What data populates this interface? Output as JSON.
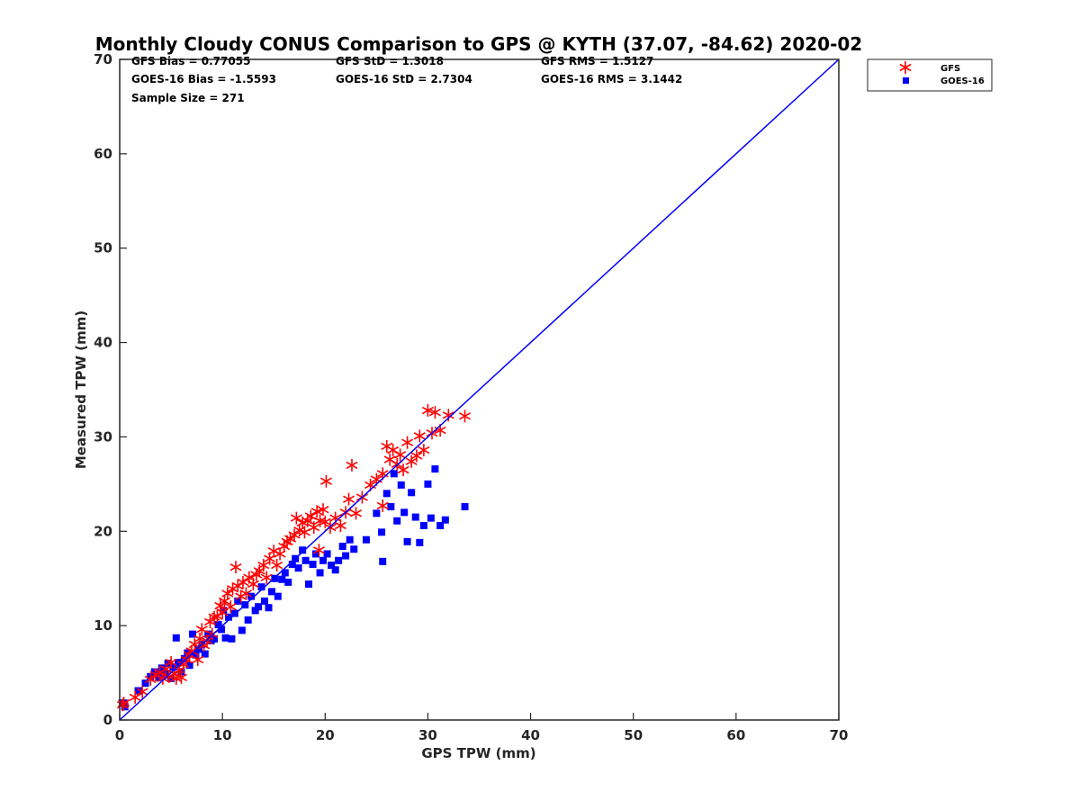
{
  "chart_data": {
    "type": "scatter",
    "title": "Monthly Cloudy CONUS Comparison to GPS @ KYTH (37.07, -84.62) 2020-02",
    "xlabel": "GPS TPW (mm)",
    "ylabel": "Measured TPW (mm)",
    "xlim": [
      0,
      70
    ],
    "ylim": [
      0,
      70
    ],
    "xticks": [
      0,
      10,
      20,
      30,
      40,
      50,
      60,
      70
    ],
    "yticks": [
      0,
      10,
      20,
      30,
      40,
      50,
      60,
      70
    ],
    "grid": false,
    "legend_position": "top-right",
    "stats": [
      [
        "GFS Bias = 0.77055",
        "GFS StD = 1.3018",
        "GFS RMS = 1.5127"
      ],
      [
        "GOES-16 Bias = -1.5593",
        "GOES-16 StD = 2.7304",
        "GOES-16 RMS = 3.1442"
      ],
      [
        "Sample Size = 271",
        "",
        ""
      ]
    ],
    "reference_line": {
      "x": [
        0,
        70
      ],
      "y": [
        0,
        70
      ],
      "color": "#0000ff"
    },
    "series": [
      {
        "name": "GFS",
        "marker": "asterisk",
        "color": "#ff0000",
        "points": [
          [
            0.3,
            1.6
          ],
          [
            0.4,
            1.8
          ],
          [
            1.5,
            2.4
          ],
          [
            2.2,
            3.0
          ],
          [
            3.0,
            4.3
          ],
          [
            3.5,
            4.8
          ],
          [
            3.9,
            5.0
          ],
          [
            4.2,
            4.4
          ],
          [
            4.5,
            5.4
          ],
          [
            4.8,
            4.6
          ],
          [
            5.0,
            6.1
          ],
          [
            5.3,
            4.9
          ],
          [
            5.5,
            4.4
          ],
          [
            5.8,
            5.3
          ],
          [
            6.0,
            4.5
          ],
          [
            6.2,
            5.9
          ],
          [
            6.5,
            6.4
          ],
          [
            6.8,
            6.9
          ],
          [
            7.0,
            7.3
          ],
          [
            7.3,
            8.0
          ],
          [
            7.6,
            6.4
          ],
          [
            7.8,
            8.6
          ],
          [
            8.0,
            9.6
          ],
          [
            8.2,
            7.9
          ],
          [
            8.5,
            8.4
          ],
          [
            8.8,
            10.4
          ],
          [
            9.0,
            9.1
          ],
          [
            9.2,
            10.9
          ],
          [
            9.5,
            11.0
          ],
          [
            9.8,
            12.1
          ],
          [
            10.0,
            11.4
          ],
          [
            10.2,
            12.6
          ],
          [
            10.5,
            13.4
          ],
          [
            10.8,
            12.0
          ],
          [
            11.0,
            13.9
          ],
          [
            11.3,
            16.2
          ],
          [
            11.5,
            14.2
          ],
          [
            11.8,
            13.1
          ],
          [
            12.0,
            14.6
          ],
          [
            12.3,
            13.4
          ],
          [
            12.6,
            15.1
          ],
          [
            13.0,
            14.4
          ],
          [
            13.3,
            15.4
          ],
          [
            13.6,
            15.8
          ],
          [
            14.0,
            16.4
          ],
          [
            14.3,
            15.1
          ],
          [
            14.6,
            17.1
          ],
          [
            15.0,
            17.9
          ],
          [
            15.3,
            16.4
          ],
          [
            15.6,
            17.6
          ],
          [
            16.0,
            18.4
          ],
          [
            16.3,
            18.9
          ],
          [
            16.6,
            19.2
          ],
          [
            17.0,
            19.6
          ],
          [
            17.2,
            21.4
          ],
          [
            17.5,
            20.1
          ],
          [
            17.8,
            20.9
          ],
          [
            18.0,
            19.9
          ],
          [
            18.3,
            21.1
          ],
          [
            18.6,
            21.6
          ],
          [
            18.9,
            20.4
          ],
          [
            19.2,
            22.1
          ],
          [
            19.5,
            21.1
          ],
          [
            19.8,
            22.3
          ],
          [
            20.0,
            21.0
          ],
          [
            20.1,
            25.3
          ],
          [
            20.5,
            20.4
          ],
          [
            21.0,
            21.4
          ],
          [
            21.5,
            20.6
          ],
          [
            22.0,
            22.0
          ],
          [
            22.3,
            23.4
          ],
          [
            22.6,
            27.0
          ],
          [
            23.0,
            21.9
          ],
          [
            23.6,
            23.6
          ],
          [
            24.4,
            24.9
          ],
          [
            25.0,
            25.5
          ],
          [
            25.6,
            26.1
          ],
          [
            26.0,
            29.0
          ],
          [
            26.3,
            27.6
          ],
          [
            26.6,
            28.6
          ],
          [
            27.0,
            27.1
          ],
          [
            27.3,
            28.1
          ],
          [
            27.6,
            26.5
          ],
          [
            28.0,
            29.4
          ],
          [
            28.4,
            27.4
          ],
          [
            28.9,
            28.0
          ],
          [
            29.2,
            30.1
          ],
          [
            29.6,
            28.6
          ],
          [
            30.0,
            32.8
          ],
          [
            30.4,
            30.4
          ],
          [
            30.7,
            32.6
          ],
          [
            31.2,
            30.7
          ],
          [
            32.0,
            32.3
          ],
          [
            33.6,
            32.2
          ],
          [
            19.4,
            18.0
          ],
          [
            25.6,
            22.7
          ]
        ]
      },
      {
        "name": "GOES-16",
        "marker": "square",
        "color": "#0000ff",
        "points": [
          [
            0.4,
            1.8
          ],
          [
            0.5,
            1.4
          ],
          [
            1.8,
            3.1
          ],
          [
            2.5,
            3.9
          ],
          [
            3.0,
            4.6
          ],
          [
            3.4,
            5.1
          ],
          [
            3.8,
            4.5
          ],
          [
            4.1,
            5.5
          ],
          [
            4.4,
            4.9
          ],
          [
            4.7,
            6.0
          ],
          [
            5.0,
            4.4
          ],
          [
            5.2,
            5.6
          ],
          [
            5.5,
            8.7
          ],
          [
            5.7,
            6.1
          ],
          [
            6.0,
            5.1
          ],
          [
            6.3,
            6.5
          ],
          [
            6.6,
            7.1
          ],
          [
            6.8,
            5.8
          ],
          [
            7.1,
            9.1
          ],
          [
            7.4,
            6.9
          ],
          [
            7.7,
            7.5
          ],
          [
            8.0,
            8.0
          ],
          [
            8.3,
            7.0
          ],
          [
            8.6,
            9.1
          ],
          [
            8.9,
            8.4
          ],
          [
            9.2,
            8.6
          ],
          [
            9.6,
            10.1
          ],
          [
            9.9,
            9.6
          ],
          [
            10.1,
            11.6
          ],
          [
            10.3,
            8.7
          ],
          [
            10.6,
            10.9
          ],
          [
            10.9,
            8.6
          ],
          [
            11.2,
            11.3
          ],
          [
            11.5,
            12.6
          ],
          [
            11.9,
            9.5
          ],
          [
            12.2,
            12.2
          ],
          [
            12.5,
            10.6
          ],
          [
            12.8,
            13.1
          ],
          [
            13.2,
            11.6
          ],
          [
            13.5,
            12.0
          ],
          [
            13.8,
            14.1
          ],
          [
            14.1,
            12.6
          ],
          [
            14.5,
            11.9
          ],
          [
            14.8,
            13.6
          ],
          [
            15.1,
            15.0
          ],
          [
            15.4,
            13.1
          ],
          [
            15.8,
            14.9
          ],
          [
            16.1,
            15.6
          ],
          [
            16.4,
            14.6
          ],
          [
            16.8,
            16.5
          ],
          [
            17.1,
            17.1
          ],
          [
            17.4,
            16.1
          ],
          [
            17.8,
            18.0
          ],
          [
            18.1,
            16.9
          ],
          [
            18.4,
            14.4
          ],
          [
            18.8,
            16.5
          ],
          [
            19.1,
            17.6
          ],
          [
            19.5,
            15.6
          ],
          [
            19.8,
            16.9
          ],
          [
            20.2,
            17.6
          ],
          [
            20.6,
            16.4
          ],
          [
            21.0,
            15.9
          ],
          [
            21.3,
            16.9
          ],
          [
            21.7,
            18.4
          ],
          [
            22.0,
            17.4
          ],
          [
            22.4,
            19.1
          ],
          [
            22.8,
            18.1
          ],
          [
            24.0,
            19.1
          ],
          [
            25.0,
            21.9
          ],
          [
            25.6,
            16.8
          ],
          [
            26.0,
            24.0
          ],
          [
            26.4,
            22.6
          ],
          [
            26.7,
            26.1
          ],
          [
            27.0,
            21.1
          ],
          [
            27.4,
            24.9
          ],
          [
            27.7,
            22.0
          ],
          [
            28.0,
            18.9
          ],
          [
            28.4,
            24.1
          ],
          [
            28.8,
            21.5
          ],
          [
            29.2,
            18.8
          ],
          [
            29.6,
            20.6
          ],
          [
            30.0,
            25.0
          ],
          [
            30.3,
            21.4
          ],
          [
            30.7,
            26.6
          ],
          [
            31.2,
            20.6
          ],
          [
            31.7,
            21.2
          ],
          [
            33.6,
            22.6
          ],
          [
            25.5,
            19.9
          ]
        ]
      }
    ]
  }
}
